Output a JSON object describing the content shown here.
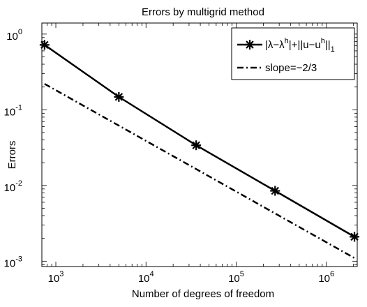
{
  "chart_data": {
    "type": "line",
    "title": "Errors by multigrid method",
    "xlabel": "Number of degrees of freedom",
    "ylabel": "Errors",
    "xscale": "log",
    "yscale": "log",
    "xlim": [
      700,
      2200000
    ],
    "ylim": [
      0.00085,
      1.4
    ],
    "x_ticks": [
      {
        "value": 1000,
        "base": "10",
        "exp": "3"
      },
      {
        "value": 10000,
        "base": "10",
        "exp": "4"
      },
      {
        "value": 100000,
        "base": "10",
        "exp": "5"
      },
      {
        "value": 1000000,
        "base": "10",
        "exp": "6"
      }
    ],
    "y_ticks": [
      {
        "value": 0.001,
        "base": "10",
        "exp": "-3"
      },
      {
        "value": 0.01,
        "base": "10",
        "exp": "-2"
      },
      {
        "value": 0.1,
        "base": "10",
        "exp": "-1"
      },
      {
        "value": 1,
        "base": "10",
        "exp": "0"
      }
    ],
    "grid": false,
    "legend_position": "top-right",
    "series": [
      {
        "legend_parts": [
          "|λ−λ",
          "h",
          "|+||u−u",
          "h",
          "||",
          "1"
        ],
        "style": "solid",
        "marker": "asterisk",
        "color": "#000000",
        "x": [
          750,
          5000,
          36000,
          270000,
          2050000
        ],
        "y": [
          0.72,
          0.148,
          0.034,
          0.0085,
          0.0021
        ]
      },
      {
        "name": "slope=−2/3",
        "style": "dash-dot",
        "marker": "none",
        "color": "#000000",
        "x": [
          750,
          2050000
        ],
        "y": [
          0.22,
          0.0011
        ]
      }
    ]
  }
}
